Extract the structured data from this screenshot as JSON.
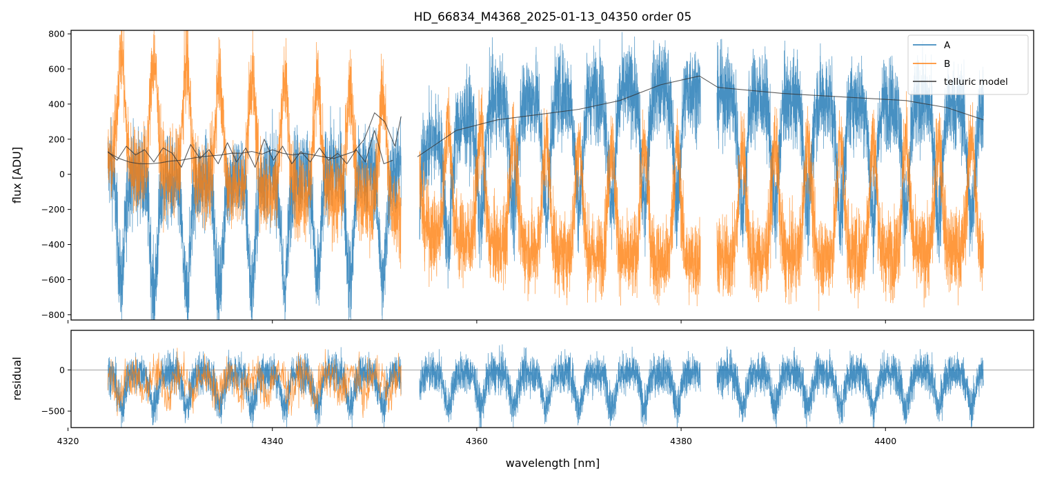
{
  "title": "HD_66834_M4368_2025-01-13_04350  order 05",
  "colors": {
    "A": "#1f77b4",
    "B": "#ff7f0e",
    "model": "#333333",
    "zero_line": "#808080"
  },
  "chart_data": [
    {
      "panel": "top",
      "type": "line",
      "xlabel": "",
      "ylabel": "flux [ADU]",
      "xlim": [
        4320.3,
        4414.5
      ],
      "ylim": [
        -830,
        820
      ],
      "yticks": [
        -800,
        -600,
        -400,
        -200,
        0,
        200,
        400,
        600,
        800
      ],
      "grid": false,
      "legend": {
        "position": "upper right",
        "entries": [
          "A",
          "B",
          "telluric model"
        ]
      },
      "series": [
        {
          "name": "A",
          "segments": [
            [
              4323.9,
              4352.6
            ],
            [
              4354.4,
              4381.9
            ],
            [
              4383.5,
              4409.6
            ]
          ],
          "x_sample": [
            4324,
            4330,
            4336,
            4342,
            4348,
            4352,
            4356,
            4362,
            4368,
            4374,
            4380,
            4386,
            4392,
            4398,
            4404,
            4409
          ],
          "y_sample": [
            50,
            -60,
            -20,
            10,
            40,
            20,
            200,
            420,
            450,
            470,
            500,
            440,
            430,
            410,
            400,
            380
          ],
          "y_range": [
            -830,
            820
          ]
        },
        {
          "name": "B",
          "segments": [
            [
              4323.9,
              4352.6
            ],
            [
              4354.4,
              4381.9
            ],
            [
              4383.5,
              4409.6
            ]
          ],
          "x_sample": [
            4324,
            4330,
            4336,
            4342,
            4348,
            4352,
            4356,
            4362,
            4368,
            4374,
            4380,
            4386,
            4392,
            4398,
            4404,
            4409
          ],
          "y_sample": [
            60,
            0,
            -80,
            -100,
            -150,
            -200,
            -350,
            -400,
            -450,
            -480,
            -500,
            -480,
            -470,
            -460,
            -450,
            -430
          ],
          "y_range": [
            -830,
            820
          ]
        },
        {
          "name": "telluric model",
          "x": [
            4354.2,
            4358,
            4362,
            4366,
            4370,
            4374,
            4378,
            4381.8,
            4383.6,
            4390,
            4396,
            4402,
            4406,
            4409.6
          ],
          "y": [
            100,
            250,
            310,
            340,
            370,
            420,
            510,
            560,
            495,
            460,
            440,
            420,
            380,
            310
          ]
        },
        {
          "name": "telluric model",
          "x": [
            4323.9,
            4325,
            4326,
            4327,
            4328,
            4329,
            4330,
            4331,
            4332,
            4333,
            4334,
            4335,
            4336,
            4337,
            4338,
            4339,
            4340,
            4341,
            4342,
            4343,
            4344,
            4345,
            4346,
            4347,
            4348,
            4349,
            4350,
            4351,
            4352,
            4352.6
          ],
          "y": [
            125,
            90,
            70,
            60,
            60,
            65,
            75,
            80,
            90,
            100,
            105,
            110,
            120,
            120,
            130,
            115,
            140,
            120,
            110,
            120,
            110,
            100,
            90,
            110,
            130,
            200,
            350,
            300,
            160,
            330
          ]
        },
        {
          "name": "telluric model",
          "x": [
            4323.9,
            4324.8,
            4325.7,
            4326.6,
            4327.5,
            4328.4,
            4329.3,
            4330.2,
            4331.1,
            4332,
            4332.9,
            4333.8,
            4334.7,
            4335.6,
            4336.5,
            4337.4,
            4338.3,
            4339.2,
            4340.1,
            4341,
            4341.9,
            4342.8,
            4343.7,
            4344.6,
            4345.5,
            4346.4,
            4347.3,
            4348.2,
            4349.1,
            4350,
            4350.9,
            4351.8
          ],
          "y": [
            130,
            80,
            160,
            110,
            140,
            70,
            150,
            120,
            40,
            170,
            90,
            140,
            60,
            180,
            70,
            150,
            40,
            200,
            80,
            160,
            60,
            130,
            70,
            150,
            80,
            120,
            60,
            140,
            70,
            250,
            60,
            80
          ]
        }
      ]
    },
    {
      "panel": "bottom",
      "type": "line",
      "xlabel": "wavelength [nm]",
      "ylabel": "residual",
      "xlim": [
        4320.3,
        4414.5
      ],
      "ylim": [
        -700,
        480
      ],
      "yticks": [
        -500,
        0
      ],
      "xticks": [
        4320,
        4340,
        4360,
        4380,
        4400
      ],
      "grid": false,
      "reference_line": 0,
      "series": [
        {
          "name": "A",
          "segments": [
            [
              4323.9,
              4352.6
            ],
            [
              4354.4,
              4381.9
            ],
            [
              4383.5,
              4409.6
            ]
          ],
          "y_range": [
            -700,
            480
          ]
        },
        {
          "name": "B",
          "segments": [
            [
              4323.9,
              4352.6
            ]
          ],
          "y_range": [
            -700,
            480
          ]
        }
      ]
    }
  ]
}
